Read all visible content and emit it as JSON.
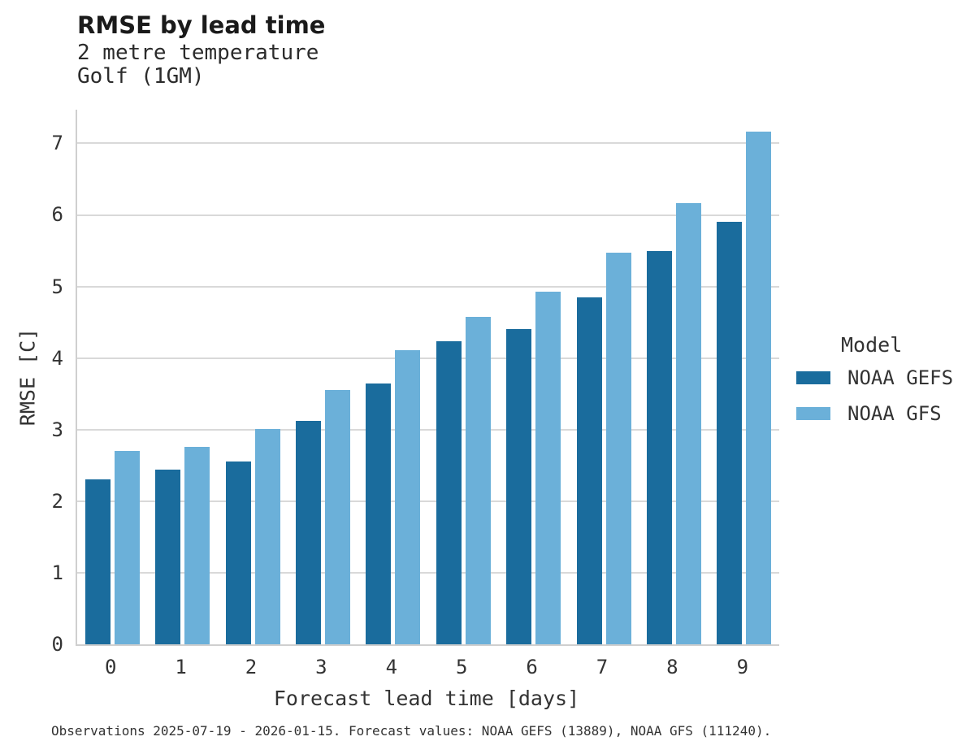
{
  "title": "RMSE by lead time",
  "subtitle_line1": "2 metre temperature",
  "subtitle_line2": "Golf (1GM)",
  "footer": "Observations 2025-07-19 - 2026-01-15. Forecast values: NOAA GEFS (13889), NOAA GFS (111240).",
  "legend": {
    "title": "Model",
    "items": [
      {
        "label": "NOAA GEFS",
        "color": "#1a6c9d"
      },
      {
        "label": "NOAA GFS",
        "color": "#6bb0d9"
      }
    ]
  },
  "colors": {
    "noaa_gefs": "#1a6c9d",
    "noaa_gfs": "#6bb0d9",
    "gridline": "#d9d9d9",
    "axis_line": "#cfcfcf",
    "text": "#333333",
    "title_text": "#1a1a1a"
  },
  "chart_data": {
    "type": "bar",
    "title": "RMSE by lead time",
    "subtitle": [
      "2 metre temperature",
      "Golf (1GM)"
    ],
    "categories": [
      "0",
      "1",
      "2",
      "3",
      "4",
      "5",
      "6",
      "7",
      "8",
      "9"
    ],
    "series": [
      {
        "name": "NOAA GEFS",
        "color": "#1a6c9d",
        "values": [
          2.31,
          2.44,
          2.56,
          3.12,
          3.64,
          4.24,
          4.41,
          4.85,
          5.5,
          5.9
        ]
      },
      {
        "name": "NOAA GFS",
        "color": "#6bb0d9",
        "values": [
          2.7,
          2.76,
          3.01,
          3.55,
          4.11,
          4.58,
          4.93,
          5.47,
          6.17,
          7.16
        ]
      }
    ],
    "xlabel": "Forecast lead time [days]",
    "ylabel": "RMSE [C]",
    "ylim": [
      0,
      7.47
    ],
    "yticks": [
      0,
      1,
      2,
      3,
      4,
      5,
      6,
      7
    ],
    "grid": true,
    "legend_title": "Model",
    "legend_position": "right",
    "caption": "Observations 2025-07-19 - 2026-01-15. Forecast values: NOAA GEFS (13889), NOAA GFS (111240)."
  }
}
